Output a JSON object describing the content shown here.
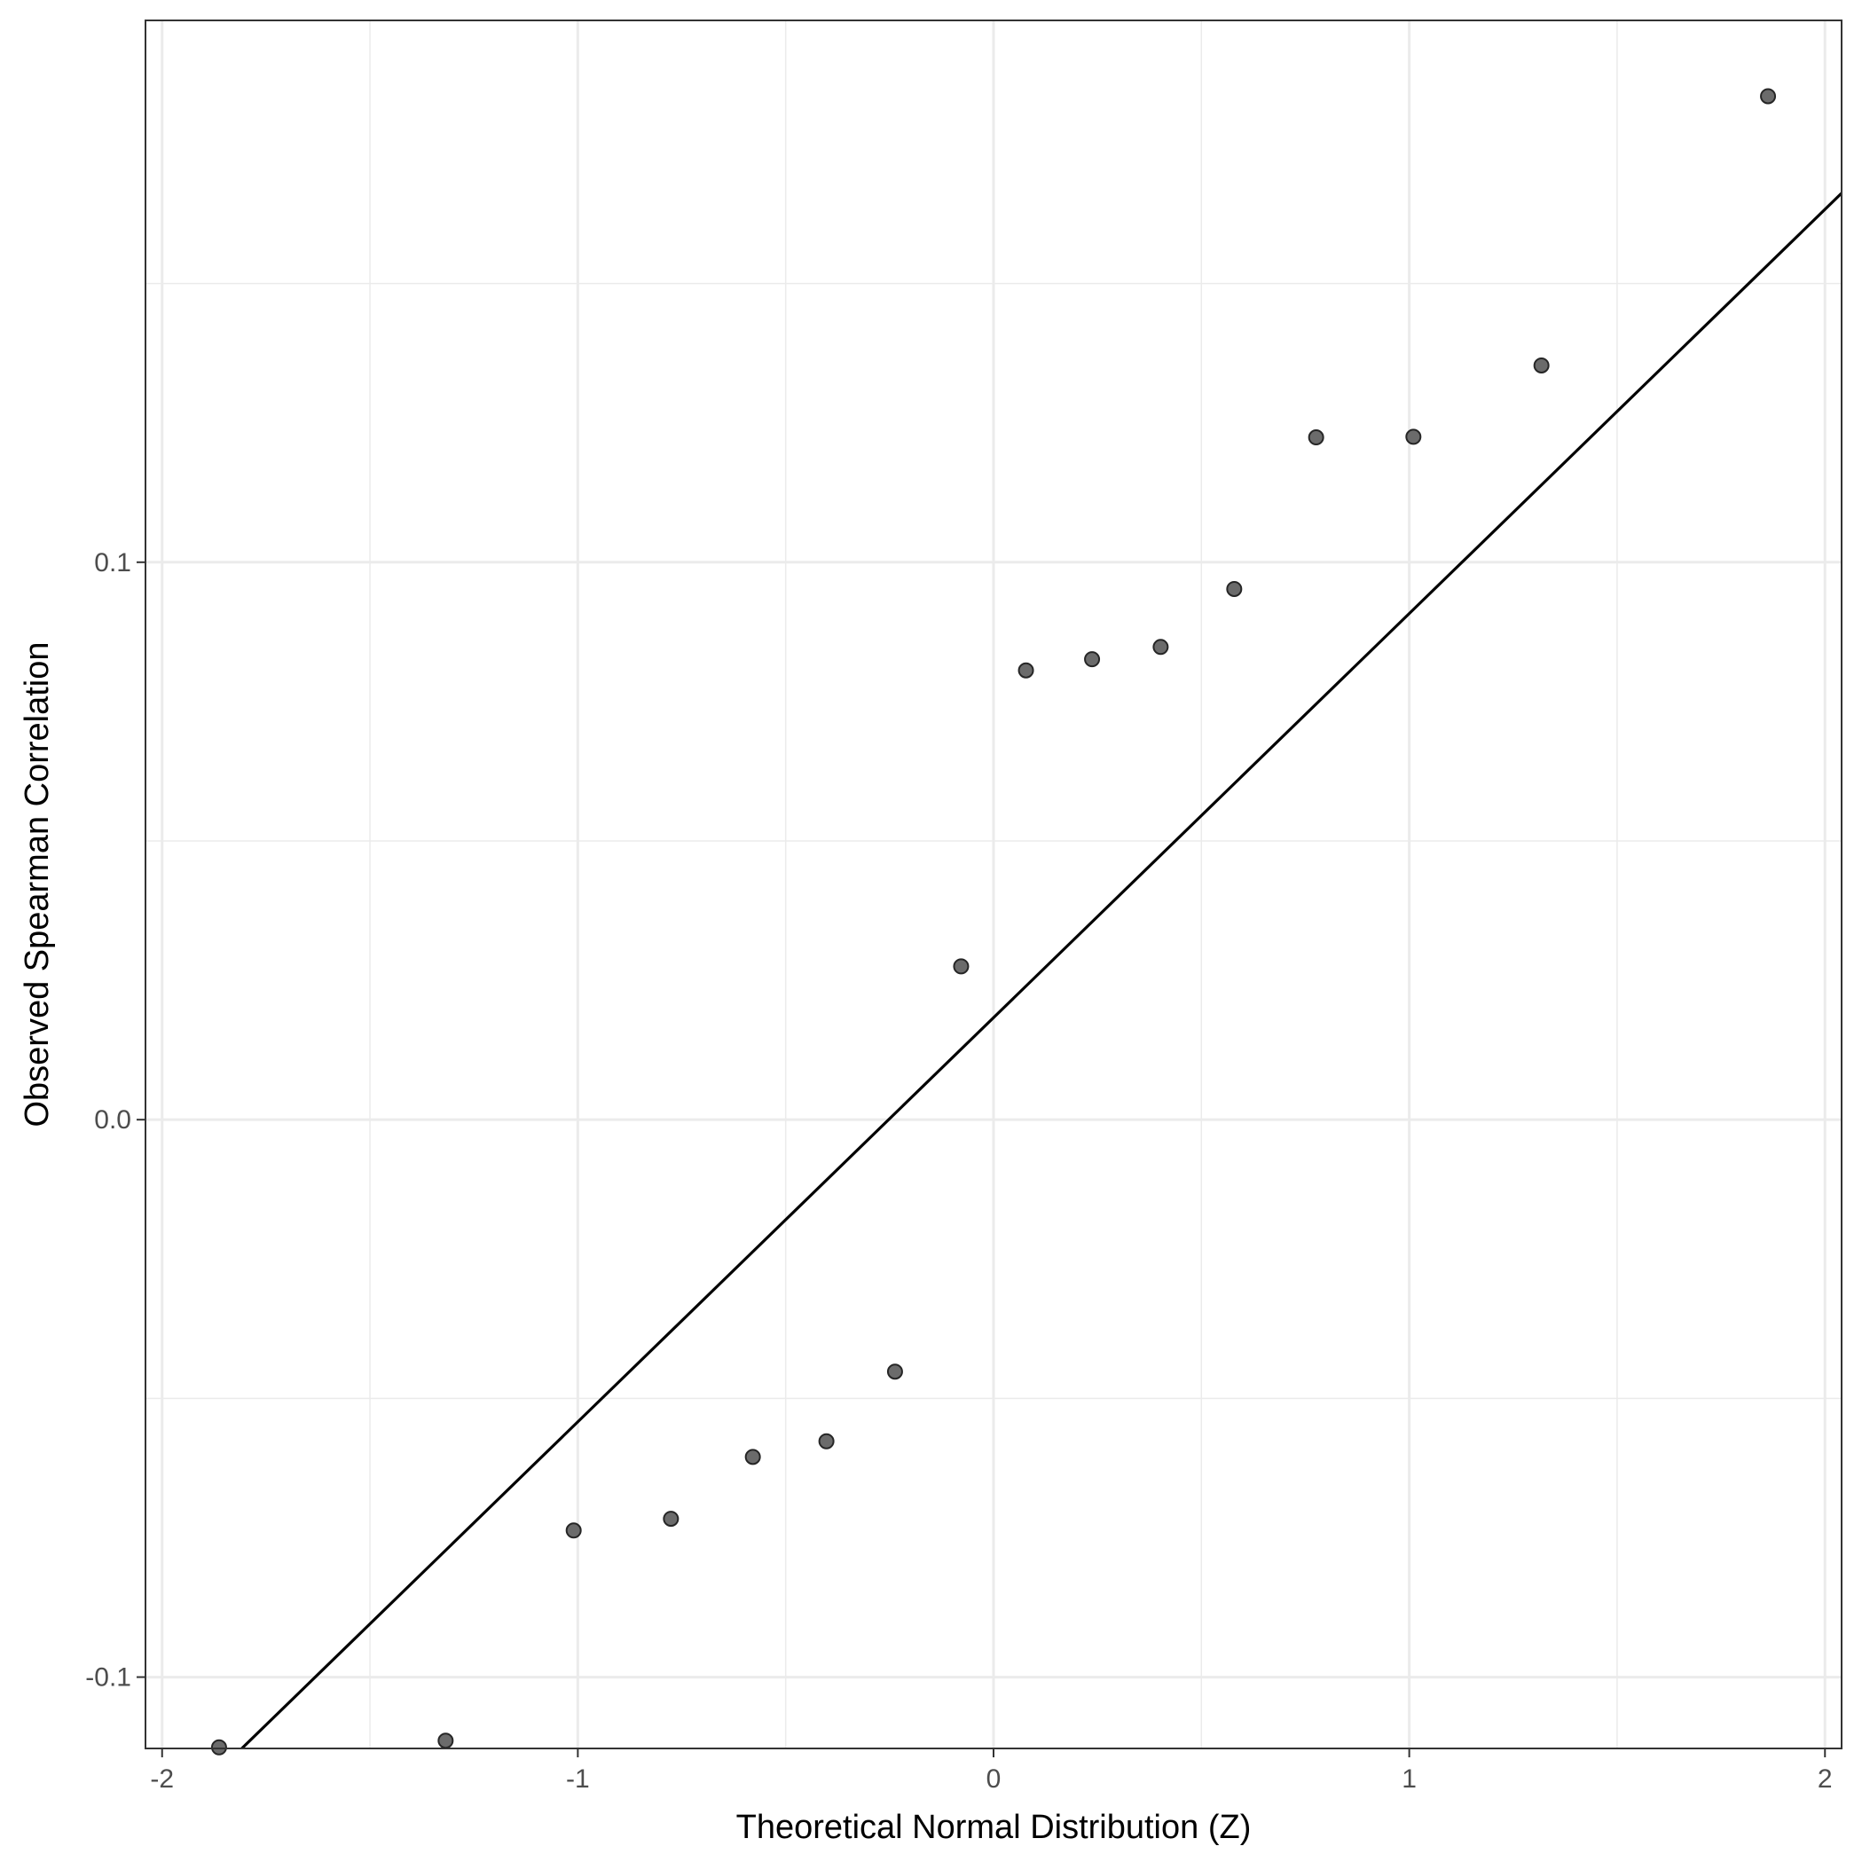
{
  "chart_data": {
    "type": "scatter",
    "xlabel": "Theoretical Normal Distribution (Z)",
    "ylabel": "Observed Spearman Correlation",
    "xlim": [
      -2.04,
      2.04
    ],
    "ylim": [
      -0.1128,
      0.1972
    ],
    "x_ticks": [
      -2,
      -1,
      0,
      1,
      2
    ],
    "x_tick_labels": [
      "-2",
      "-1",
      "0",
      "1",
      "2"
    ],
    "y_ticks": [
      -0.1,
      0.0,
      0.1
    ],
    "y_tick_labels": [
      "-0.1",
      "0.0",
      "0.1"
    ],
    "grid": true,
    "reference_line": {
      "slope": 0.0725,
      "intercept": 0.0183
    },
    "points": [
      {
        "x": -1.863,
        "y": -0.1126
      },
      {
        "x": -1.318,
        "y": -0.1114
      },
      {
        "x": -1.01,
        "y": -0.0737
      },
      {
        "x": -0.776,
        "y": -0.0716
      },
      {
        "x": -0.579,
        "y": -0.0605
      },
      {
        "x": -0.402,
        "y": -0.0577
      },
      {
        "x": -0.237,
        "y": -0.0452
      },
      {
        "x": -0.078,
        "y": 0.0275
      },
      {
        "x": 0.078,
        "y": 0.0806
      },
      {
        "x": 0.237,
        "y": 0.0826
      },
      {
        "x": 0.402,
        "y": 0.0848
      },
      {
        "x": 0.579,
        "y": 0.0952
      },
      {
        "x": 0.776,
        "y": 0.1224
      },
      {
        "x": 1.01,
        "y": 0.1225
      },
      {
        "x": 1.318,
        "y": 0.1353
      },
      {
        "x": 1.863,
        "y": 0.1836
      }
    ],
    "colors": {
      "point_fill": "#6b6b6b",
      "point_stroke": "#262626",
      "line": "#000000",
      "grid": "#ebebeb",
      "panel_border": "#333333"
    }
  }
}
